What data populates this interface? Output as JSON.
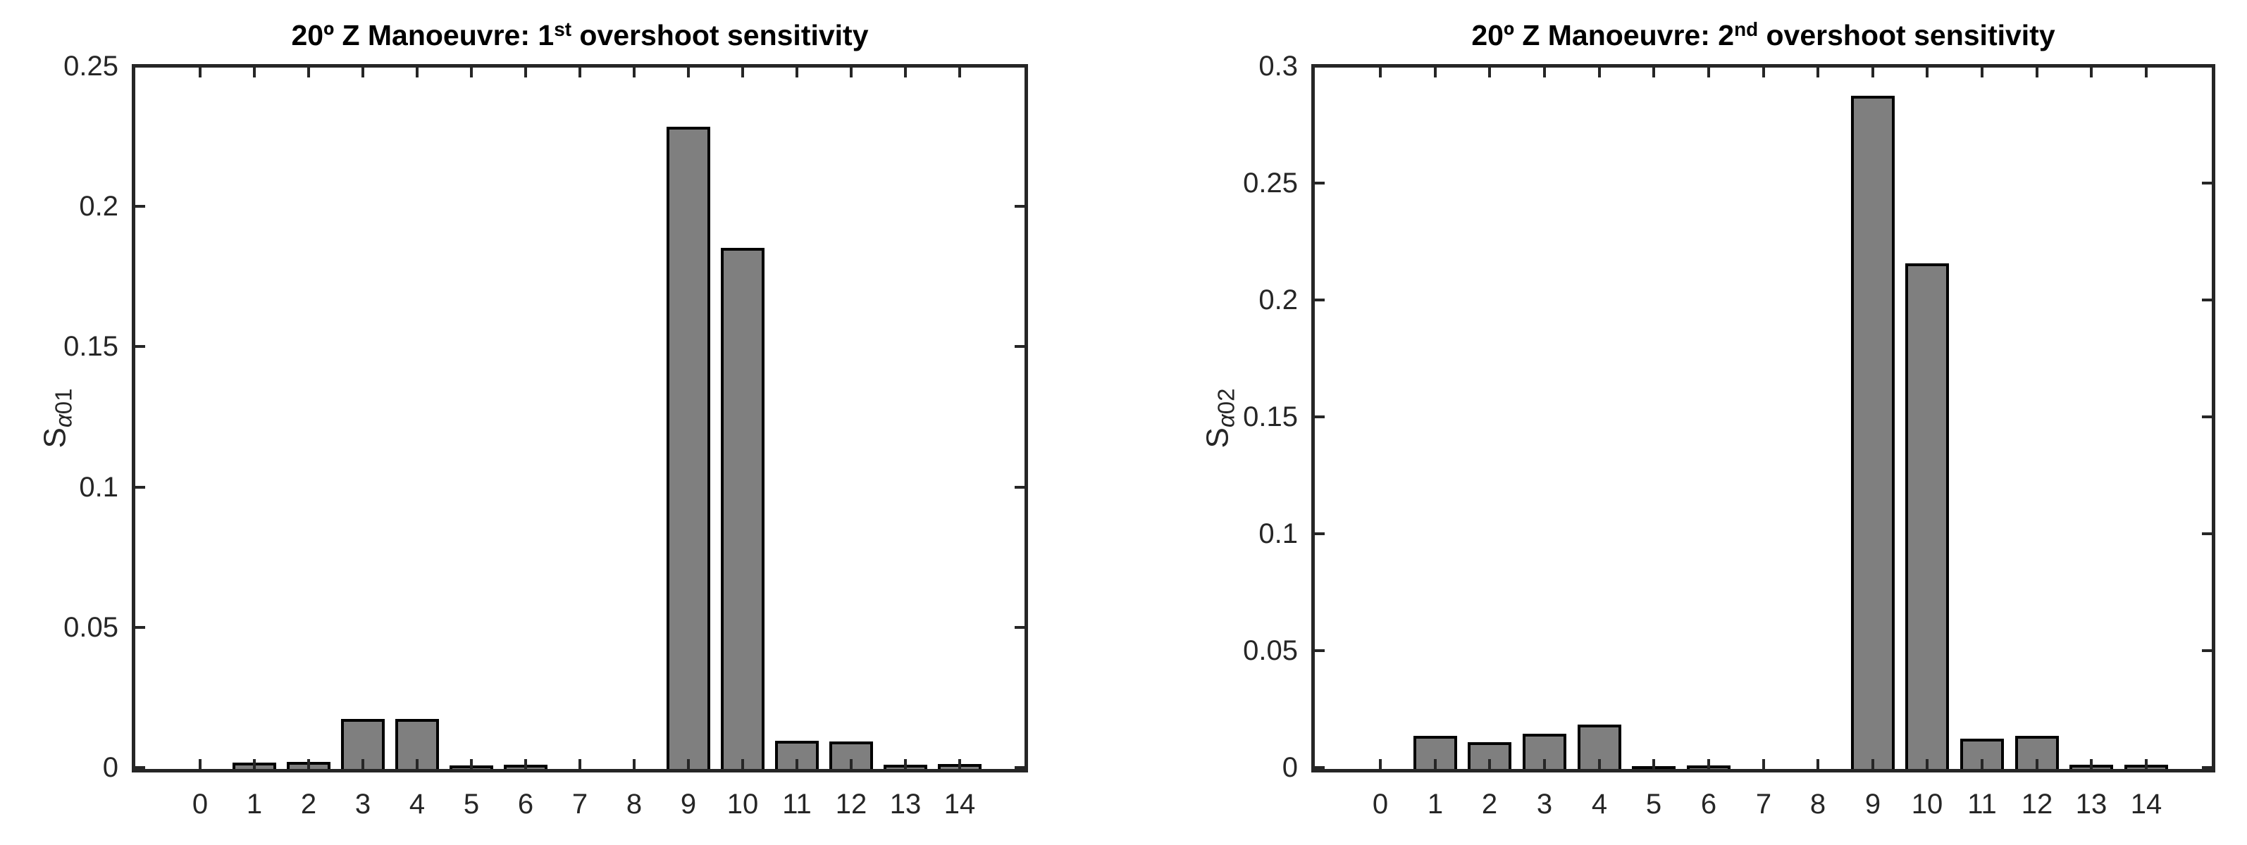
{
  "figure": {
    "background": "#ffffff",
    "axis_color": "#262626",
    "text_color": "#000000"
  },
  "chart_data": [
    {
      "type": "bar",
      "title": "20º Z Manoeuvre: 1st overshoot sensitivity",
      "title_parts": {
        "pre": "20º Z Manoeuvre: 1",
        "sup": "st",
        "post": " overshoot sensitivity"
      },
      "ylabel": "S_alpha01",
      "ylabel_parts": {
        "base": "S",
        "sub_italic": "α",
        "sub": "01"
      },
      "xlabel": "",
      "categories": [
        "0",
        "1",
        "2",
        "3",
        "4",
        "5",
        "6",
        "7",
        "8",
        "9",
        "10",
        "11",
        "12",
        "13",
        "14"
      ],
      "values": [
        0,
        0.0023,
        0.0025,
        0.0177,
        0.0179,
        0.0013,
        0.0014,
        0,
        0,
        0.2288,
        0.1858,
        0.01,
        0.0098,
        0.0016,
        0.0017
      ],
      "ylim": [
        0,
        0.25
      ],
      "ytick_step": 0.05,
      "ytick_labels": [
        "0",
        "0.05",
        "0.1",
        "0.15",
        "0.2",
        "0.25"
      ],
      "bar_color": "#7f7f7f",
      "bar_edge_color": "#000000",
      "grid": false,
      "legend": null,
      "box": true,
      "tick_dir": "in"
    },
    {
      "type": "bar",
      "title": "20º Z Manoeuvre: 2nd overshoot sensitivity",
      "title_parts": {
        "pre": "20º Z Manoeuvre: 2",
        "sup": "nd",
        "post": " overshoot sensitivity"
      },
      "ylabel": "S_alpha02",
      "ylabel_parts": {
        "base": "S",
        "sub_italic": "α",
        "sub": "02"
      },
      "xlabel": "",
      "categories": [
        "0",
        "1",
        "2",
        "3",
        "4",
        "5",
        "6",
        "7",
        "8",
        "9",
        "10",
        "11",
        "12",
        "13",
        "14"
      ],
      "values": [
        0,
        0.0143,
        0.0114,
        0.0152,
        0.0191,
        0.0012,
        0.0014,
        0,
        0,
        0.2879,
        0.2163,
        0.013,
        0.0142,
        0.0019,
        0.0017
      ],
      "ylim": [
        0,
        0.3
      ],
      "ytick_step": 0.05,
      "ytick_labels": [
        "0",
        "0.05",
        "0.1",
        "0.15",
        "0.2",
        "0.25",
        "0.3"
      ],
      "bar_color": "#7f7f7f",
      "bar_edge_color": "#000000",
      "grid": false,
      "legend": null,
      "box": true,
      "tick_dir": "in"
    }
  ]
}
